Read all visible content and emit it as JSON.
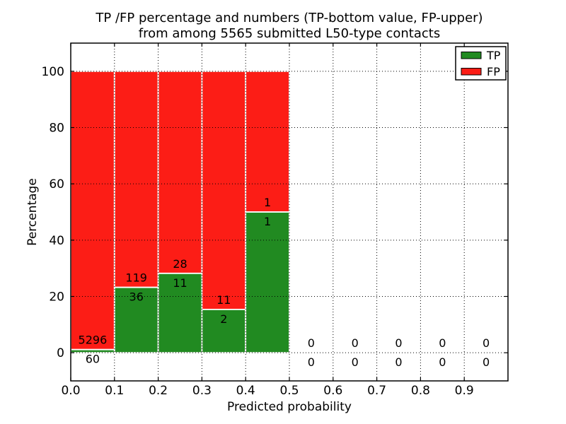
{
  "chart_data": {
    "type": "bar",
    "stacked_percentage": true,
    "title_line1": "TP /FP percentage and numbers (TP-bottom value, FP-upper)",
    "title_line2": "from among 5565 submitted L50-type contacts",
    "total_submitted": 5565,
    "xlabel": "Predicted probability",
    "ylabel": "Percentage",
    "xlim": [
      0,
      1
    ],
    "ylim": [
      -10,
      110
    ],
    "xticks": [
      {
        "value": 0.0,
        "label": "0.0"
      },
      {
        "value": 0.1,
        "label": "0.1"
      },
      {
        "value": 0.2,
        "label": "0.2"
      },
      {
        "value": 0.3,
        "label": "0.3"
      },
      {
        "value": 0.4,
        "label": "0.4"
      },
      {
        "value": 0.5,
        "label": "0.5"
      },
      {
        "value": 0.6,
        "label": "0.6"
      },
      {
        "value": 0.7,
        "label": "0.7"
      },
      {
        "value": 0.8,
        "label": "0.8"
      },
      {
        "value": 0.9,
        "label": "0.9"
      }
    ],
    "yticks": [
      {
        "value": 0,
        "label": "0"
      },
      {
        "value": 20,
        "label": "20"
      },
      {
        "value": 40,
        "label": "40"
      },
      {
        "value": 60,
        "label": "60"
      },
      {
        "value": 80,
        "label": "80"
      },
      {
        "value": 100,
        "label": "100"
      }
    ],
    "grid": true,
    "series_note": "bars are percentage-stacked to 100%; labels show raw counts (TP below boundary, FP above)",
    "bins": [
      {
        "range": [
          0.0,
          0.1
        ],
        "tp": 60,
        "fp": 5296
      },
      {
        "range": [
          0.1,
          0.2
        ],
        "tp": 36,
        "fp": 119
      },
      {
        "range": [
          0.2,
          0.3
        ],
        "tp": 11,
        "fp": 28
      },
      {
        "range": [
          0.3,
          0.4
        ],
        "tp": 2,
        "fp": 11
      },
      {
        "range": [
          0.4,
          0.5
        ],
        "tp": 1,
        "fp": 1
      },
      {
        "range": [
          0.5,
          0.6
        ],
        "tp": 0,
        "fp": 0
      },
      {
        "range": [
          0.6,
          0.7
        ],
        "tp": 0,
        "fp": 0
      },
      {
        "range": [
          0.7,
          0.8
        ],
        "tp": 0,
        "fp": 0
      },
      {
        "range": [
          0.8,
          0.9
        ],
        "tp": 0,
        "fp": 0
      },
      {
        "range": [
          0.9,
          1.0
        ],
        "tp": 0,
        "fp": 0
      }
    ],
    "legend": {
      "position": "upper right",
      "entries": [
        {
          "label": "TP",
          "color": "#218a21"
        },
        {
          "label": "FP",
          "color": "#fc1d16"
        }
      ]
    },
    "colors": {
      "tp": "#218a21",
      "fp": "#fc1d16",
      "grid": "#000000",
      "bar_edge": "#ffffff",
      "spine": "#000000",
      "background": "#ffffff"
    }
  }
}
